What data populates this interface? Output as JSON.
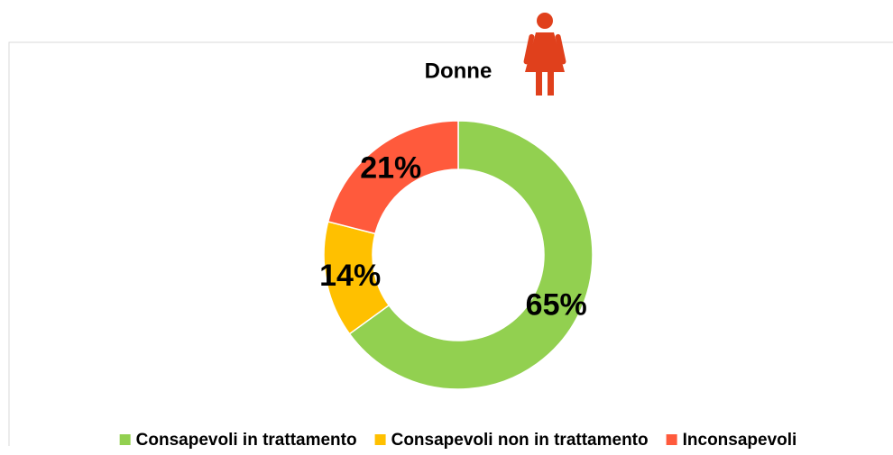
{
  "chart_data": {
    "type": "donut",
    "title": "Donne",
    "categories": [
      "Consapevoli in trattamento",
      "Consapevoli non in trattamento",
      "Inconsapevoli"
    ],
    "values": [
      65,
      14,
      21
    ],
    "value_labels": [
      "65%",
      "14%",
      "21%"
    ],
    "colors": [
      "#92d050",
      "#ffc000",
      "#ff5a3c"
    ],
    "legend": "bottom"
  }
}
